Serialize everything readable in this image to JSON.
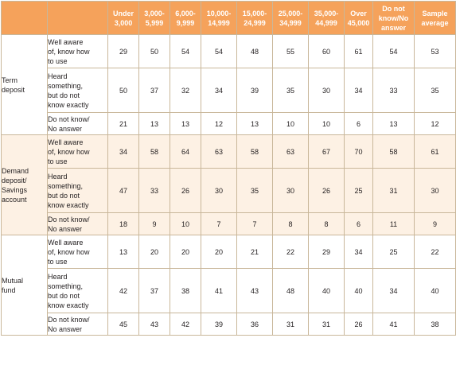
{
  "table": {
    "columns": [
      [
        "Under",
        "3,000"
      ],
      [
        "3,000-",
        "5,999"
      ],
      [
        "6,000-",
        "9,999"
      ],
      [
        "10,000-",
        "14,999"
      ],
      [
        "15,000-",
        "24,999"
      ],
      [
        "25,000-",
        "34,999"
      ],
      [
        "35,000-",
        "44,999"
      ],
      [
        "Over",
        "45,000"
      ],
      [
        "Do not",
        "know/No",
        "answer"
      ],
      [
        "Sample",
        "average"
      ]
    ],
    "groups": [
      {
        "category": [
          "Term",
          "deposit"
        ],
        "rows": [
          {
            "response": [
              "Well aware",
              "of, know how",
              "to use"
            ],
            "values": [
              "29",
              "50",
              "54",
              "54",
              "48",
              "55",
              "60",
              "61",
              "54",
              "53"
            ]
          },
          {
            "response": [
              "Heard",
              "something,",
              "but do not",
              "know exactly"
            ],
            "values": [
              "50",
              "37",
              "32",
              "34",
              "39",
              "35",
              "30",
              "34",
              "33",
              "35"
            ]
          },
          {
            "response": [
              "Do not know/",
              "No answer"
            ],
            "values": [
              "21",
              "13",
              "13",
              "12",
              "13",
              "10",
              "10",
              "6",
              "13",
              "12"
            ]
          }
        ]
      },
      {
        "category": [
          "Demand",
          "deposit/",
          "Savings",
          "account"
        ],
        "rows": [
          {
            "response": [
              "Well aware",
              "of, know how",
              "to use"
            ],
            "values": [
              "34",
              "58",
              "64",
              "63",
              "58",
              "63",
              "67",
              "70",
              "58",
              "61"
            ]
          },
          {
            "response": [
              "Heard",
              "something,",
              "but do not",
              "know exactly"
            ],
            "values": [
              "47",
              "33",
              "26",
              "30",
              "35",
              "30",
              "26",
              "25",
              "31",
              "30"
            ]
          },
          {
            "response": [
              "Do not know/",
              "No answer"
            ],
            "values": [
              "18",
              "9",
              "10",
              "7",
              "7",
              "8",
              "8",
              "6",
              "11",
              "9"
            ]
          }
        ]
      },
      {
        "category": [
          "Mutual",
          "fund"
        ],
        "rows": [
          {
            "response": [
              "Well aware",
              "of, know how",
              "to use"
            ],
            "values": [
              "13",
              "20",
              "20",
              "20",
              "21",
              "22",
              "29",
              "34",
              "25",
              "22"
            ]
          },
          {
            "response": [
              "Heard",
              "something,",
              "but do not",
              "know exactly"
            ],
            "values": [
              "42",
              "37",
              "38",
              "41",
              "43",
              "48",
              "40",
              "40",
              "34",
              "40"
            ]
          },
          {
            "response": [
              "Do not know/",
              "No answer"
            ],
            "values": [
              "45",
              "43",
              "42",
              "39",
              "36",
              "31",
              "31",
              "26",
              "41",
              "38"
            ]
          }
        ]
      }
    ]
  }
}
